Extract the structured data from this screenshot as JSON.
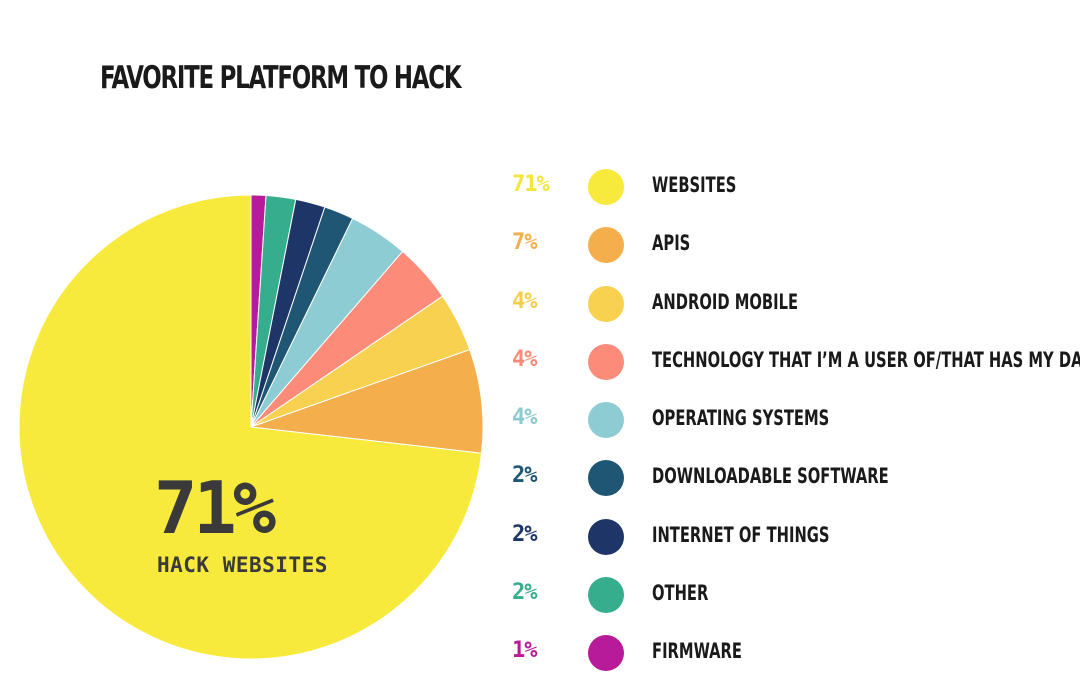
{
  "title": "FAVORITE PLATFORM TO HACK",
  "center": {
    "value": "71%",
    "label": "HACK WEBSITES"
  },
  "colors": {
    "websites": "#F7EA3C",
    "apis": "#F4AE4C",
    "android_mobile": "#F7D14F",
    "technology_user": "#FC8B7A",
    "operating_systems": "#8ECCD3",
    "downloadable_software": "#1E5673",
    "internet_of_things": "#1E3667",
    "other": "#36AE8D",
    "firmware": "#B71B9A",
    "text": "#1a1a1a",
    "center_text": "#3a3a3a"
  },
  "chart_data": {
    "type": "pie",
    "title": "FAVORITE PLATFORM TO HACK",
    "slices": [
      {
        "label": "WEBSITES",
        "pct_label": "71%",
        "value": 71,
        "color": "#F7EA3C",
        "pct_color": "#F5E43C"
      },
      {
        "label": "APIS",
        "pct_label": "7%",
        "value": 7,
        "color": "#F4AE4C",
        "pct_color": "#F4AE4C"
      },
      {
        "label": "ANDROID MOBILE",
        "pct_label": "4%",
        "value": 4,
        "color": "#F7D14F",
        "pct_color": "#F5CD48"
      },
      {
        "label": "TECHNOLOGY THAT I’M A USER OF/THAT HAS MY DATA",
        "pct_label": "4%",
        "value": 4,
        "color": "#FC8B7A",
        "pct_color": "#F98A7A"
      },
      {
        "label": "OPERATING SYSTEMS",
        "pct_label": "4%",
        "value": 4,
        "color": "#8ECCD3",
        "pct_color": "#8CC9D0"
      },
      {
        "label": "DOWNLOADABLE SOFTWARE",
        "pct_label": "2%",
        "value": 2,
        "color": "#1E5673",
        "pct_color": "#1E5673"
      },
      {
        "label": "INTERNET OF THINGS",
        "pct_label": "2%",
        "value": 2,
        "color": "#1E3667",
        "pct_color": "#1E3667"
      },
      {
        "label": "OTHER",
        "pct_label": "2%",
        "value": 2,
        "color": "#36AE8D",
        "pct_color": "#36AE8D"
      },
      {
        "label": "FIRMWARE",
        "pct_label": "1%",
        "value": 1,
        "color": "#B71B9A",
        "pct_color": "#B71B9A"
      }
    ]
  }
}
